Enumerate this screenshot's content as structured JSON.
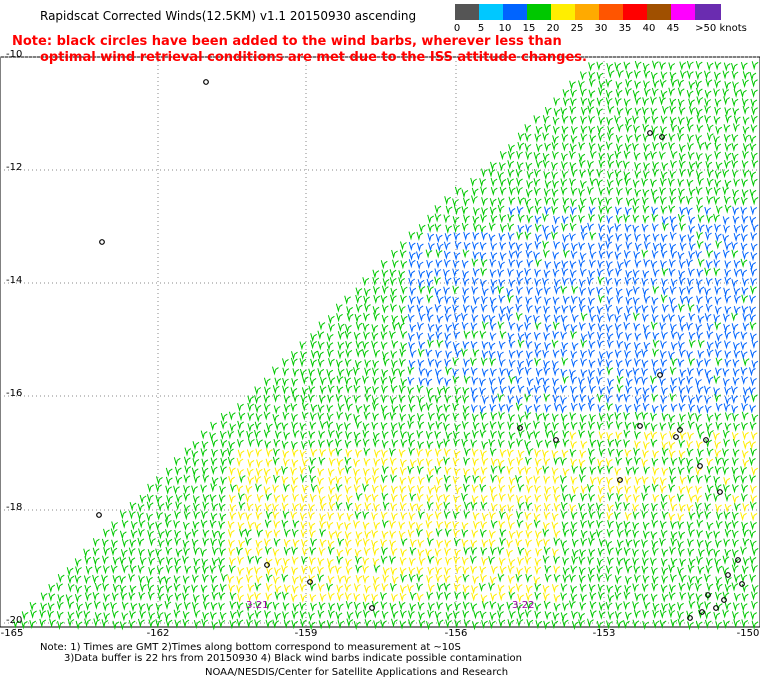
{
  "header": {
    "title": "Rapidscat Corrected Winds(12.5KM) v1.1 20150930 ascending",
    "note_line1": "Note: black circles have been added to the wind barbs, wherever less than",
    "note_line2": "optimal wind retrieval conditions are met due to the ISS attitude changes."
  },
  "legend": {
    "swatches": [
      {
        "label": "0",
        "color": "#555555"
      },
      {
        "label": "5",
        "color": "#00c8ff"
      },
      {
        "label": "10",
        "color": "#0064ff"
      },
      {
        "label": "15",
        "color": "#00c800"
      },
      {
        "label": "20",
        "color": "#ffee00"
      },
      {
        "label": "25",
        "color": "#ffaa00"
      },
      {
        "label": "30",
        "color": "#ff5500"
      },
      {
        "label": "35",
        "color": "#ff0000"
      },
      {
        "label": "40",
        "color": "#a05000"
      },
      {
        "label": "45",
        "color": "#ff00ff"
      },
      {
        "label": ">50 knots",
        "color": "#6a2cb0"
      }
    ]
  },
  "axes": {
    "lat_labels": [
      "-10",
      "-12",
      "-14",
      "-16",
      "-18",
      "-20"
    ],
    "lon_labels": [
      "-165",
      "-162",
      "-159",
      "-156",
      "-153",
      "-150"
    ],
    "grid": "dotted"
  },
  "timestamps": [
    "3:21",
    "3:22"
  ],
  "footer": {
    "line1": "Note: 1) Times are GMT 2)Times along bottom correspond to measurement at ~10S",
    "line2": "3)Data buffer is 22 hrs from 20150930 4) Black wind barbs indicate possible contamination",
    "line3": "NOAA/NESDIS/Center for Satellite Applications and Research"
  }
}
